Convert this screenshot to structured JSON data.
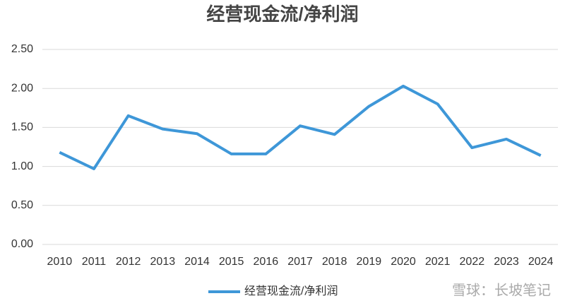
{
  "chart_data": {
    "type": "line",
    "title": "经营现金流/净利润",
    "categories": [
      "2010",
      "2011",
      "2012",
      "2013",
      "2014",
      "2015",
      "2016",
      "2017",
      "2018",
      "2019",
      "2020",
      "2021",
      "2022",
      "2023",
      "2024"
    ],
    "series": [
      {
        "name": "经营现金流/净利润",
        "color": "#3e97d8",
        "values": [
          1.18,
          0.97,
          1.65,
          1.48,
          1.42,
          1.16,
          1.16,
          1.52,
          1.41,
          1.77,
          2.03,
          1.8,
          1.24,
          1.35,
          1.14
        ]
      }
    ],
    "ylim": [
      0,
      2.5
    ],
    "yticks": [
      {
        "value": 0,
        "label": "0.00"
      },
      {
        "value": 0.5,
        "label": "0.50"
      },
      {
        "value": 1,
        "label": "1.00"
      },
      {
        "value": 1.5,
        "label": "1.50"
      },
      {
        "value": 2,
        "label": "2.00"
      },
      {
        "value": 2.5,
        "label": "2.50"
      }
    ],
    "grid": true,
    "legend": "bottom",
    "watermark": "雪球：长坡笔记"
  }
}
